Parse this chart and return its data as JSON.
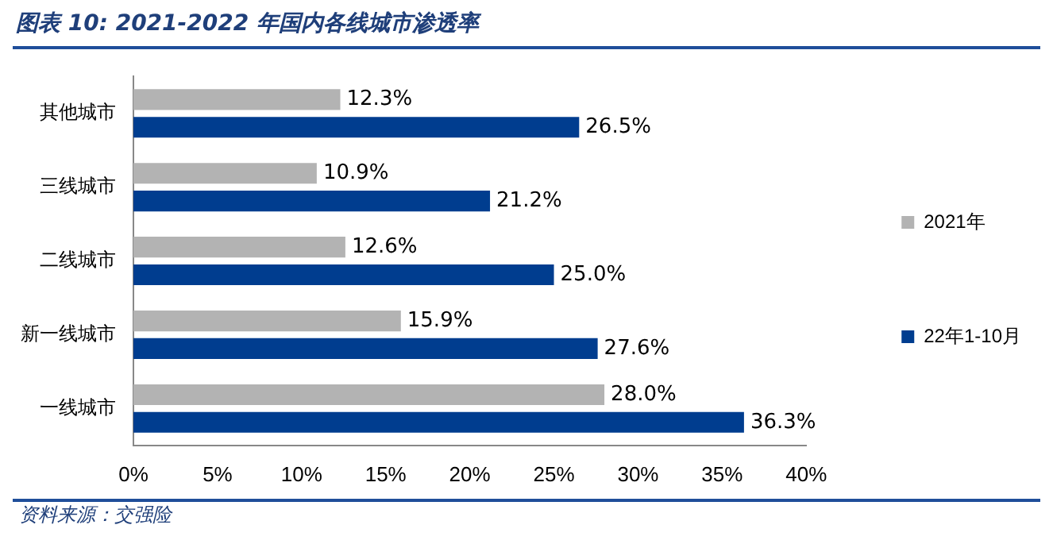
{
  "chart_data": {
    "type": "bar",
    "orientation": "horizontal",
    "title": "图表 10:  2021-2022 年国内各线城市渗透率",
    "categories": [
      "其他城市",
      "三线城市",
      "二线城市",
      "新一线城市",
      "一线城市"
    ],
    "series": [
      {
        "name": "2021年",
        "color": "#b3b3b3",
        "values": [
          12.3,
          10.9,
          12.6,
          15.9,
          28.0
        ],
        "value_labels": [
          "12.3%",
          "10.9%",
          "12.6%",
          "15.9%",
          "28.0%"
        ]
      },
      {
        "name": "22年1-10月",
        "color": "#003d8f",
        "values": [
          26.5,
          21.2,
          25.0,
          27.6,
          36.3
        ],
        "value_labels": [
          "26.5%",
          "21.2%",
          "25.0%",
          "27.6%",
          "36.3%"
        ]
      }
    ],
    "xlim": [
      0,
      40
    ],
    "xticks": [
      {
        "value": 0,
        "label": "0%"
      },
      {
        "value": 5,
        "label": "5%"
      },
      {
        "value": 10,
        "label": "10%"
      },
      {
        "value": 15,
        "label": "15%"
      },
      {
        "value": 20,
        "label": "20%"
      },
      {
        "value": 25,
        "label": "25%"
      },
      {
        "value": 30,
        "label": "30%"
      },
      {
        "value": 35,
        "label": "35%"
      },
      {
        "value": 40,
        "label": "40%"
      }
    ],
    "grid": false,
    "legend": "right",
    "annotations": [
      "资料来源：交强险"
    ]
  }
}
